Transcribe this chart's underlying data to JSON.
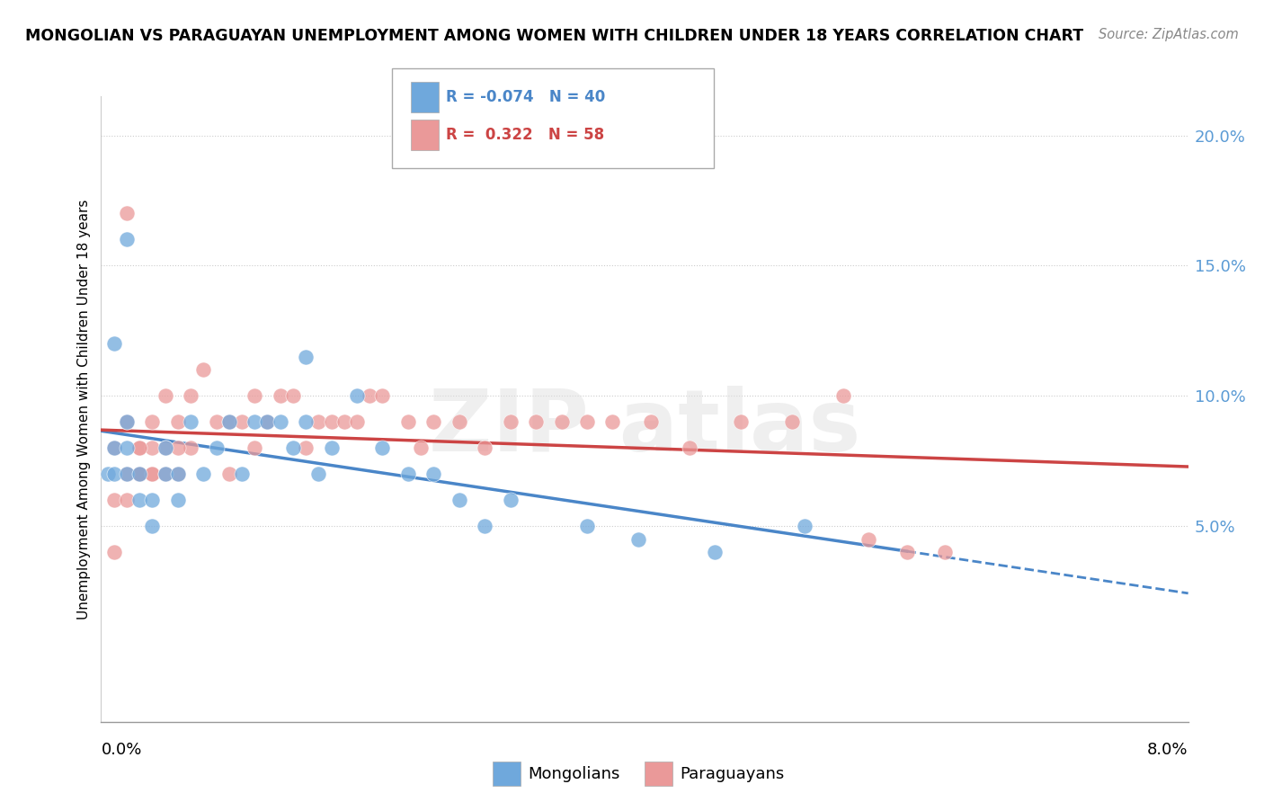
{
  "title": "MONGOLIAN VS PARAGUAYAN UNEMPLOYMENT AMONG WOMEN WITH CHILDREN UNDER 18 YEARS CORRELATION CHART",
  "source": "Source: ZipAtlas.com",
  "ylabel": "Unemployment Among Women with Children Under 18 years",
  "xlim": [
    0.0,
    0.085
  ],
  "ylim": [
    -0.025,
    0.215
  ],
  "yticks": [
    0.05,
    0.1,
    0.15,
    0.2
  ],
  "ytick_labels_right": [
    "5.0%",
    "10.0%",
    "15.0%",
    "20.0%"
  ],
  "xtick_left_label": "0.0%",
  "xtick_right_label": "8.0%",
  "mongolian_R": -0.074,
  "mongolian_N": 40,
  "paraguayan_R": 0.322,
  "paraguayan_N": 58,
  "mongolian_color": "#6fa8dc",
  "paraguayan_color": "#ea9999",
  "mongolian_line_color": "#4a86c8",
  "paraguayan_line_color": "#cc4444",
  "background_color": "#ffffff",
  "mon_x": [
    0.0005,
    0.001,
    0.001,
    0.001,
    0.002,
    0.002,
    0.002,
    0.003,
    0.003,
    0.004,
    0.004,
    0.005,
    0.005,
    0.006,
    0.006,
    0.007,
    0.008,
    0.009,
    0.01,
    0.011,
    0.012,
    0.013,
    0.014,
    0.015,
    0.016,
    0.017,
    0.018,
    0.02,
    0.022,
    0.024,
    0.026,
    0.028,
    0.03,
    0.032,
    0.038,
    0.042,
    0.048,
    0.055,
    0.002,
    0.016
  ],
  "mon_y": [
    0.07,
    0.12,
    0.07,
    0.08,
    0.08,
    0.09,
    0.07,
    0.06,
    0.07,
    0.05,
    0.06,
    0.08,
    0.07,
    0.06,
    0.07,
    0.09,
    0.07,
    0.08,
    0.09,
    0.07,
    0.09,
    0.09,
    0.09,
    0.08,
    0.09,
    0.07,
    0.08,
    0.1,
    0.08,
    0.07,
    0.07,
    0.06,
    0.05,
    0.06,
    0.05,
    0.045,
    0.04,
    0.05,
    0.16,
    0.115
  ],
  "par_x": [
    0.001,
    0.001,
    0.002,
    0.002,
    0.003,
    0.003,
    0.004,
    0.004,
    0.005,
    0.005,
    0.006,
    0.006,
    0.007,
    0.007,
    0.008,
    0.009,
    0.01,
    0.01,
    0.011,
    0.012,
    0.012,
    0.013,
    0.014,
    0.015,
    0.016,
    0.017,
    0.018,
    0.019,
    0.02,
    0.021,
    0.022,
    0.024,
    0.025,
    0.026,
    0.028,
    0.03,
    0.032,
    0.034,
    0.036,
    0.038,
    0.04,
    0.043,
    0.046,
    0.05,
    0.054,
    0.058,
    0.002,
    0.003,
    0.004,
    0.004,
    0.005,
    0.006,
    0.06,
    0.063,
    0.002,
    0.001,
    0.003,
    0.066
  ],
  "par_y": [
    0.08,
    0.06,
    0.07,
    0.09,
    0.08,
    0.07,
    0.07,
    0.09,
    0.1,
    0.08,
    0.07,
    0.09,
    0.08,
    0.1,
    0.11,
    0.09,
    0.07,
    0.09,
    0.09,
    0.08,
    0.1,
    0.09,
    0.1,
    0.1,
    0.08,
    0.09,
    0.09,
    0.09,
    0.09,
    0.1,
    0.1,
    0.09,
    0.08,
    0.09,
    0.09,
    0.08,
    0.09,
    0.09,
    0.09,
    0.09,
    0.09,
    0.09,
    0.08,
    0.09,
    0.09,
    0.1,
    0.06,
    0.07,
    0.08,
    0.07,
    0.07,
    0.08,
    0.045,
    0.04,
    0.17,
    0.04,
    0.08,
    0.04
  ]
}
